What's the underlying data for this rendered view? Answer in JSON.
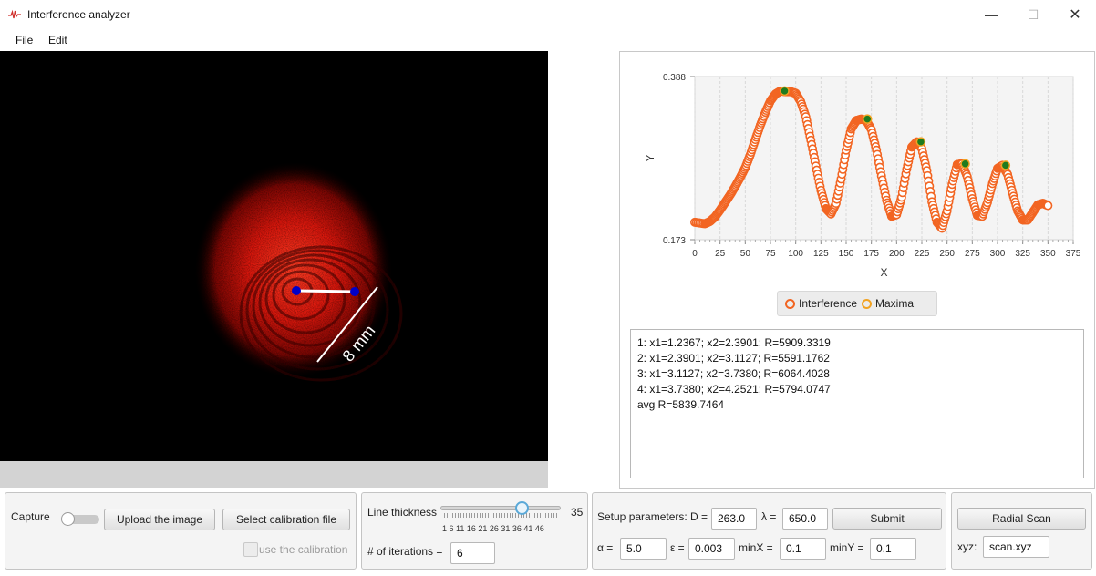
{
  "window": {
    "title": "Interference analyzer",
    "controls": [
      "—",
      "☐",
      "✕"
    ]
  },
  "menu": [
    "File",
    "Edit"
  ],
  "image": {
    "annotation": "8 mm"
  },
  "chart_data": {
    "type": "scatter",
    "xlabel": "X",
    "ylabel": "Y",
    "xlim": [
      0,
      375
    ],
    "ylim": [
      0.173,
      0.388
    ],
    "x_ticks": [
      0,
      25,
      50,
      75,
      100,
      125,
      150,
      175,
      200,
      225,
      250,
      275,
      300,
      325,
      350,
      375
    ],
    "y_ticks": [
      0.173,
      0.388
    ],
    "grid": true,
    "legend_position": "bottom",
    "series": [
      {
        "name": "Interference",
        "color": "#f26522",
        "x": [
          0,
          10,
          15,
          20,
          25,
          30,
          35,
          40,
          45,
          50,
          55,
          60,
          65,
          70,
          75,
          80,
          85,
          90,
          95,
          100,
          105,
          110,
          115,
          120,
          125,
          130,
          135,
          140,
          145,
          150,
          155,
          160,
          165,
          170,
          175,
          180,
          185,
          190,
          195,
          200,
          205,
          210,
          215,
          220,
          225,
          230,
          235,
          240,
          245,
          250,
          255,
          260,
          265,
          270,
          275,
          280,
          285,
          290,
          295,
          300,
          305,
          310,
          315,
          320,
          325,
          330,
          335,
          340,
          345,
          350
        ],
        "values": [
          0.196,
          0.194,
          0.197,
          0.203,
          0.212,
          0.222,
          0.232,
          0.243,
          0.255,
          0.268,
          0.285,
          0.305,
          0.324,
          0.341,
          0.356,
          0.365,
          0.369,
          0.368,
          0.368,
          0.366,
          0.355,
          0.335,
          0.304,
          0.27,
          0.238,
          0.214,
          0.207,
          0.221,
          0.253,
          0.291,
          0.319,
          0.33,
          0.332,
          0.33,
          0.318,
          0.291,
          0.257,
          0.225,
          0.204,
          0.206,
          0.229,
          0.266,
          0.295,
          0.302,
          0.293,
          0.264,
          0.223,
          0.196,
          0.188,
          0.211,
          0.246,
          0.272,
          0.273,
          0.256,
          0.227,
          0.205,
          0.204,
          0.222,
          0.247,
          0.267,
          0.271,
          0.259,
          0.234,
          0.211,
          0.199,
          0.199,
          0.209,
          0.219,
          0.221,
          0.218
        ]
      },
      {
        "name": "Maxima",
        "color": "#f2a322",
        "x": [
          89,
          171,
          224,
          268,
          308
        ],
        "values": [
          0.369,
          0.332,
          0.302,
          0.273,
          0.271
        ]
      }
    ]
  },
  "results": {
    "lines": [
      "1: x1=1.2367; x2=2.3901; R=5909.3319",
      "2: x1=2.3901; x2=3.1127; R=5591.1762",
      "3: x1=3.1127; x2=3.7380; R=6064.4028",
      "4: x1=3.7380; x2=4.2521; R=5794.0747",
      "avg R=5839.7464"
    ]
  },
  "capture_panel": {
    "capture_label": "Capture",
    "capture_on": false,
    "upload_button": "Upload the image",
    "calibration_button": "Select calibration file",
    "use_calibration_label": "use the calibration",
    "use_calibration_checked": false
  },
  "line_panel": {
    "thickness_label": "Line thickness",
    "thickness_value": "35",
    "slider_min": 1,
    "slider_max": 46,
    "slider_value": 35,
    "tick_labels": "1   6  11 16 21 26 31 36 41 46",
    "iterations_label": "# of iterations =",
    "iterations_value": "6"
  },
  "setup_panel": {
    "setup_label": "Setup parameters: D =",
    "d_value": "263.0",
    "lambda_label": "λ =",
    "lambda_value": "650.0",
    "submit_button": "Submit",
    "alpha_label": "α =",
    "alpha_value": "5.0",
    "epsilon_label": "ε =",
    "epsilon_value": "0.003",
    "minx_label": "minX =",
    "minx_value": "0.1",
    "miny_label": "minY =",
    "miny_value": "0.1"
  },
  "scan_panel": {
    "radial_button": "Radial Scan",
    "xyz_label": "xyz:",
    "xyz_value": "scan.xyz"
  }
}
